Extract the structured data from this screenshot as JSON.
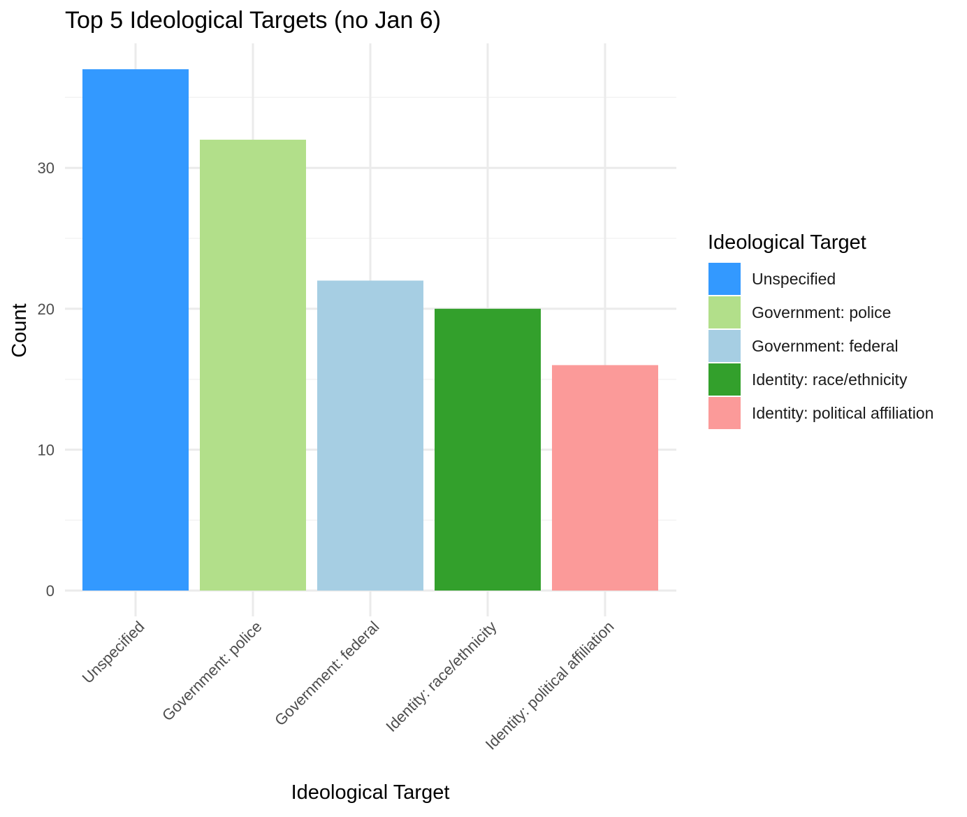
{
  "chart_data": {
    "type": "bar",
    "title": "Top 5 Ideological Targets (no Jan 6)",
    "xlabel": "Ideological Target",
    "ylabel": "Count",
    "categories": [
      "Unspecified",
      "Government: police",
      "Government: federal",
      "Identity: race/ethnicity",
      "Identity: political affiliation"
    ],
    "values": [
      37,
      32,
      22,
      20,
      16
    ],
    "colors": [
      "#3399FF",
      "#B2DF8A",
      "#A6CEE3",
      "#33A02C",
      "#FB9A99"
    ],
    "ylim": [
      0,
      39
    ],
    "y_ticks": [
      0,
      10,
      20,
      30
    ],
    "y_tick_labels": [
      "0",
      "10",
      "20",
      "30"
    ],
    "grid": true,
    "legend": {
      "title": "Ideological Target",
      "position": "right",
      "entries": [
        "Unspecified",
        "Government: police",
        "Government: federal",
        "Identity: race/ethnicity",
        "Identity: political affiliation"
      ]
    }
  }
}
